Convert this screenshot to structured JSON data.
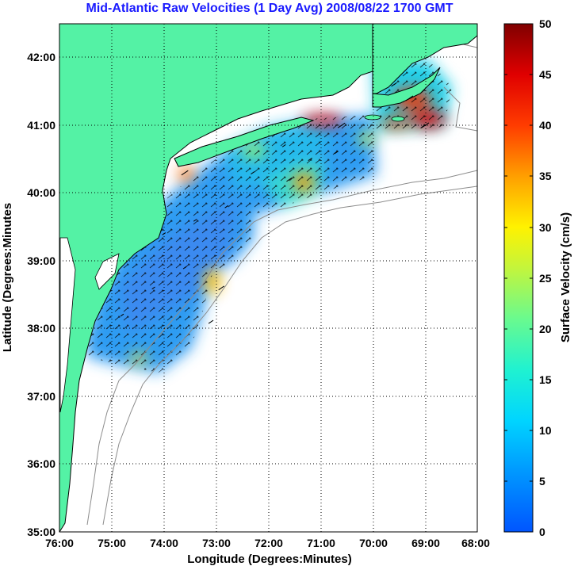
{
  "chart_data": {
    "type": "map",
    "title": "Mid-Atlantic Raw Velocities (1 Day Avg) 2008/08/22 1700 GMT",
    "xlabel": "Longitude (Degrees:Minutes)",
    "ylabel": "Latitude (Degrees:Minutes",
    "xlim": [
      -76,
      -68
    ],
    "ylim": [
      35,
      42.5
    ],
    "x_ticks": [
      "76:00",
      "75:00",
      "74:00",
      "73:00",
      "72:00",
      "71:00",
      "70:00",
      "69:00",
      "68:00"
    ],
    "y_ticks": [
      "35:00",
      "36:00",
      "37:00",
      "38:00",
      "39:00",
      "40:00",
      "41:00",
      "42:00"
    ],
    "grid": true,
    "colorbar": {
      "label": "Surface Velocity (cm/s)",
      "range": [
        0,
        50
      ],
      "ticks": [
        "0",
        "5",
        "10",
        "15",
        "20",
        "25",
        "30",
        "35",
        "40",
        "45",
        "50"
      ],
      "colormap": "jet"
    },
    "colors": {
      "land": "#54f2a5",
      "title": "#1a1aff",
      "bathymetry": "#8c8c8c",
      "grid": "#000000"
    },
    "velocity_field": [
      {
        "lon": -74.8,
        "lat": 38.2,
        "speed": 6
      },
      {
        "lon": -74.2,
        "lat": 38.6,
        "speed": 5
      },
      {
        "lon": -73.6,
        "lat": 38.9,
        "speed": 7
      },
      {
        "lon": -74.0,
        "lat": 39.4,
        "speed": 8
      },
      {
        "lon": -73.4,
        "lat": 39.6,
        "speed": 7
      },
      {
        "lon": -72.8,
        "lat": 39.8,
        "speed": 9
      },
      {
        "lon": -72.3,
        "lat": 40.3,
        "speed": 10
      },
      {
        "lon": -71.7,
        "lat": 40.7,
        "speed": 8
      },
      {
        "lon": -71.2,
        "lat": 40.5,
        "speed": 14
      },
      {
        "lon": -70.7,
        "lat": 40.6,
        "speed": 12
      },
      {
        "lon": -73.1,
        "lat": 38.1,
        "speed": 20
      },
      {
        "lon": -72.9,
        "lat": 38.6,
        "speed": 27
      },
      {
        "lon": -71.6,
        "lat": 40.2,
        "speed": 26
      },
      {
        "lon": -70.6,
        "lat": 41.0,
        "speed": 40
      },
      {
        "lon": -73.6,
        "lat": 40.3,
        "speed": 36
      },
      {
        "lon": -69.3,
        "lat": 41.4,
        "speed": 42
      },
      {
        "lon": -69.0,
        "lat": 41.0,
        "speed": 45
      },
      {
        "lon": -69.6,
        "lat": 41.6,
        "speed": 20
      }
    ]
  }
}
